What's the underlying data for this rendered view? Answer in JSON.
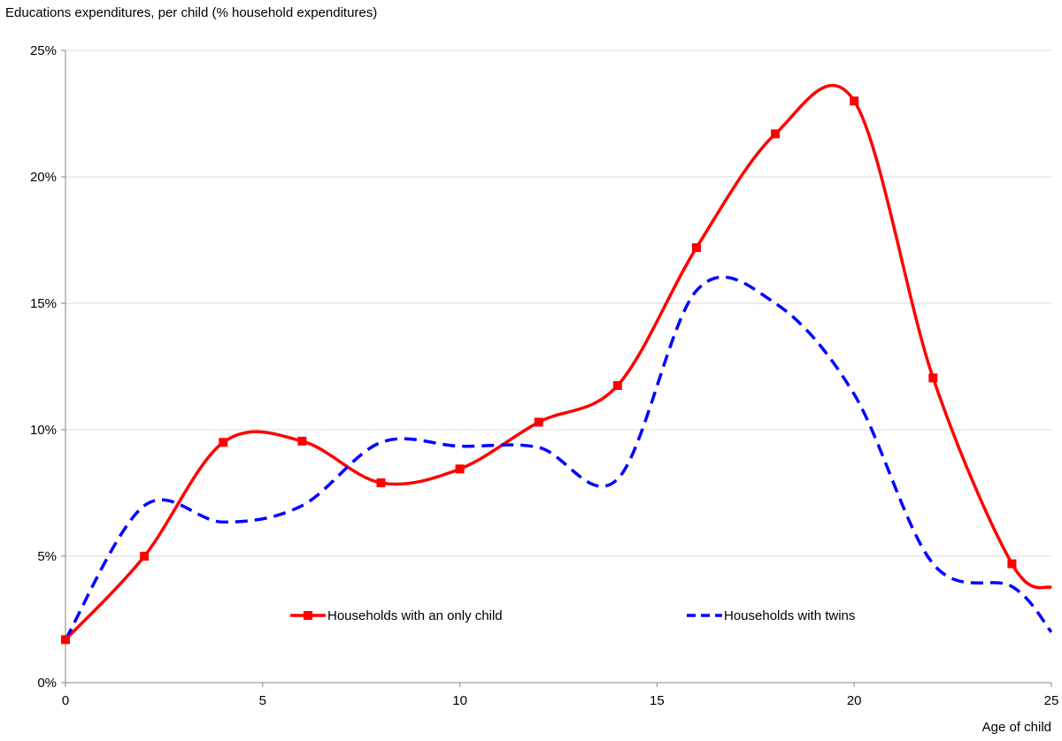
{
  "chart_data": {
    "type": "line",
    "title": "",
    "ylabel": "Educations expenditures, per child (% household expenditures)",
    "xlabel": "Age of child",
    "xlim": [
      0,
      25
    ],
    "ylim": [
      0,
      25
    ],
    "x_ticks": [
      0,
      5,
      10,
      15,
      20,
      25
    ],
    "x_tick_labels": [
      "0",
      "5",
      "10",
      "15",
      "20",
      "25"
    ],
    "y_ticks": [
      0,
      5,
      10,
      15,
      20,
      25
    ],
    "y_tick_labels": [
      "0%",
      "5%",
      "10%",
      "15%",
      "20%",
      "25%"
    ],
    "grid": "horizontal",
    "legend_position": "inside-bottom",
    "series": [
      {
        "name": "Households with an only child",
        "color": "#ff0000",
        "style": "solid",
        "marker": "square",
        "points": [
          [
            0,
            1.7
          ],
          [
            2,
            5.0
          ],
          [
            4,
            9.5
          ],
          [
            6,
            9.55
          ],
          [
            8,
            7.9
          ],
          [
            10,
            8.45
          ],
          [
            12,
            10.3
          ],
          [
            14,
            11.75
          ],
          [
            16,
            17.2
          ],
          [
            18,
            21.7
          ],
          [
            20,
            23.0
          ],
          [
            22,
            12.05
          ],
          [
            24,
            4.7
          ],
          [
            25,
            3.75
          ]
        ],
        "marker_points": [
          [
            0,
            1.7
          ],
          [
            2,
            5.0
          ],
          [
            4,
            9.5
          ],
          [
            6,
            9.55
          ],
          [
            8,
            7.9
          ],
          [
            10,
            8.45
          ],
          [
            12,
            10.3
          ],
          [
            14,
            11.75
          ],
          [
            16,
            17.2
          ],
          [
            18,
            21.7
          ],
          [
            20,
            23.0
          ],
          [
            22,
            12.05
          ],
          [
            24,
            4.7
          ]
        ]
      },
      {
        "name": "Households with twins",
        "color": "#0000ff",
        "style": "dashed",
        "marker": "none",
        "points": [
          [
            0,
            1.7
          ],
          [
            2,
            7.0
          ],
          [
            4,
            6.35
          ],
          [
            6,
            7.0
          ],
          [
            8,
            9.5
          ],
          [
            10,
            9.35
          ],
          [
            12,
            9.3
          ],
          [
            14,
            8.05
          ],
          [
            16,
            15.5
          ],
          [
            18,
            15.0
          ],
          [
            20,
            11.4
          ],
          [
            22,
            4.7
          ],
          [
            24,
            3.8
          ],
          [
            25,
            2.0
          ]
        ]
      }
    ]
  }
}
